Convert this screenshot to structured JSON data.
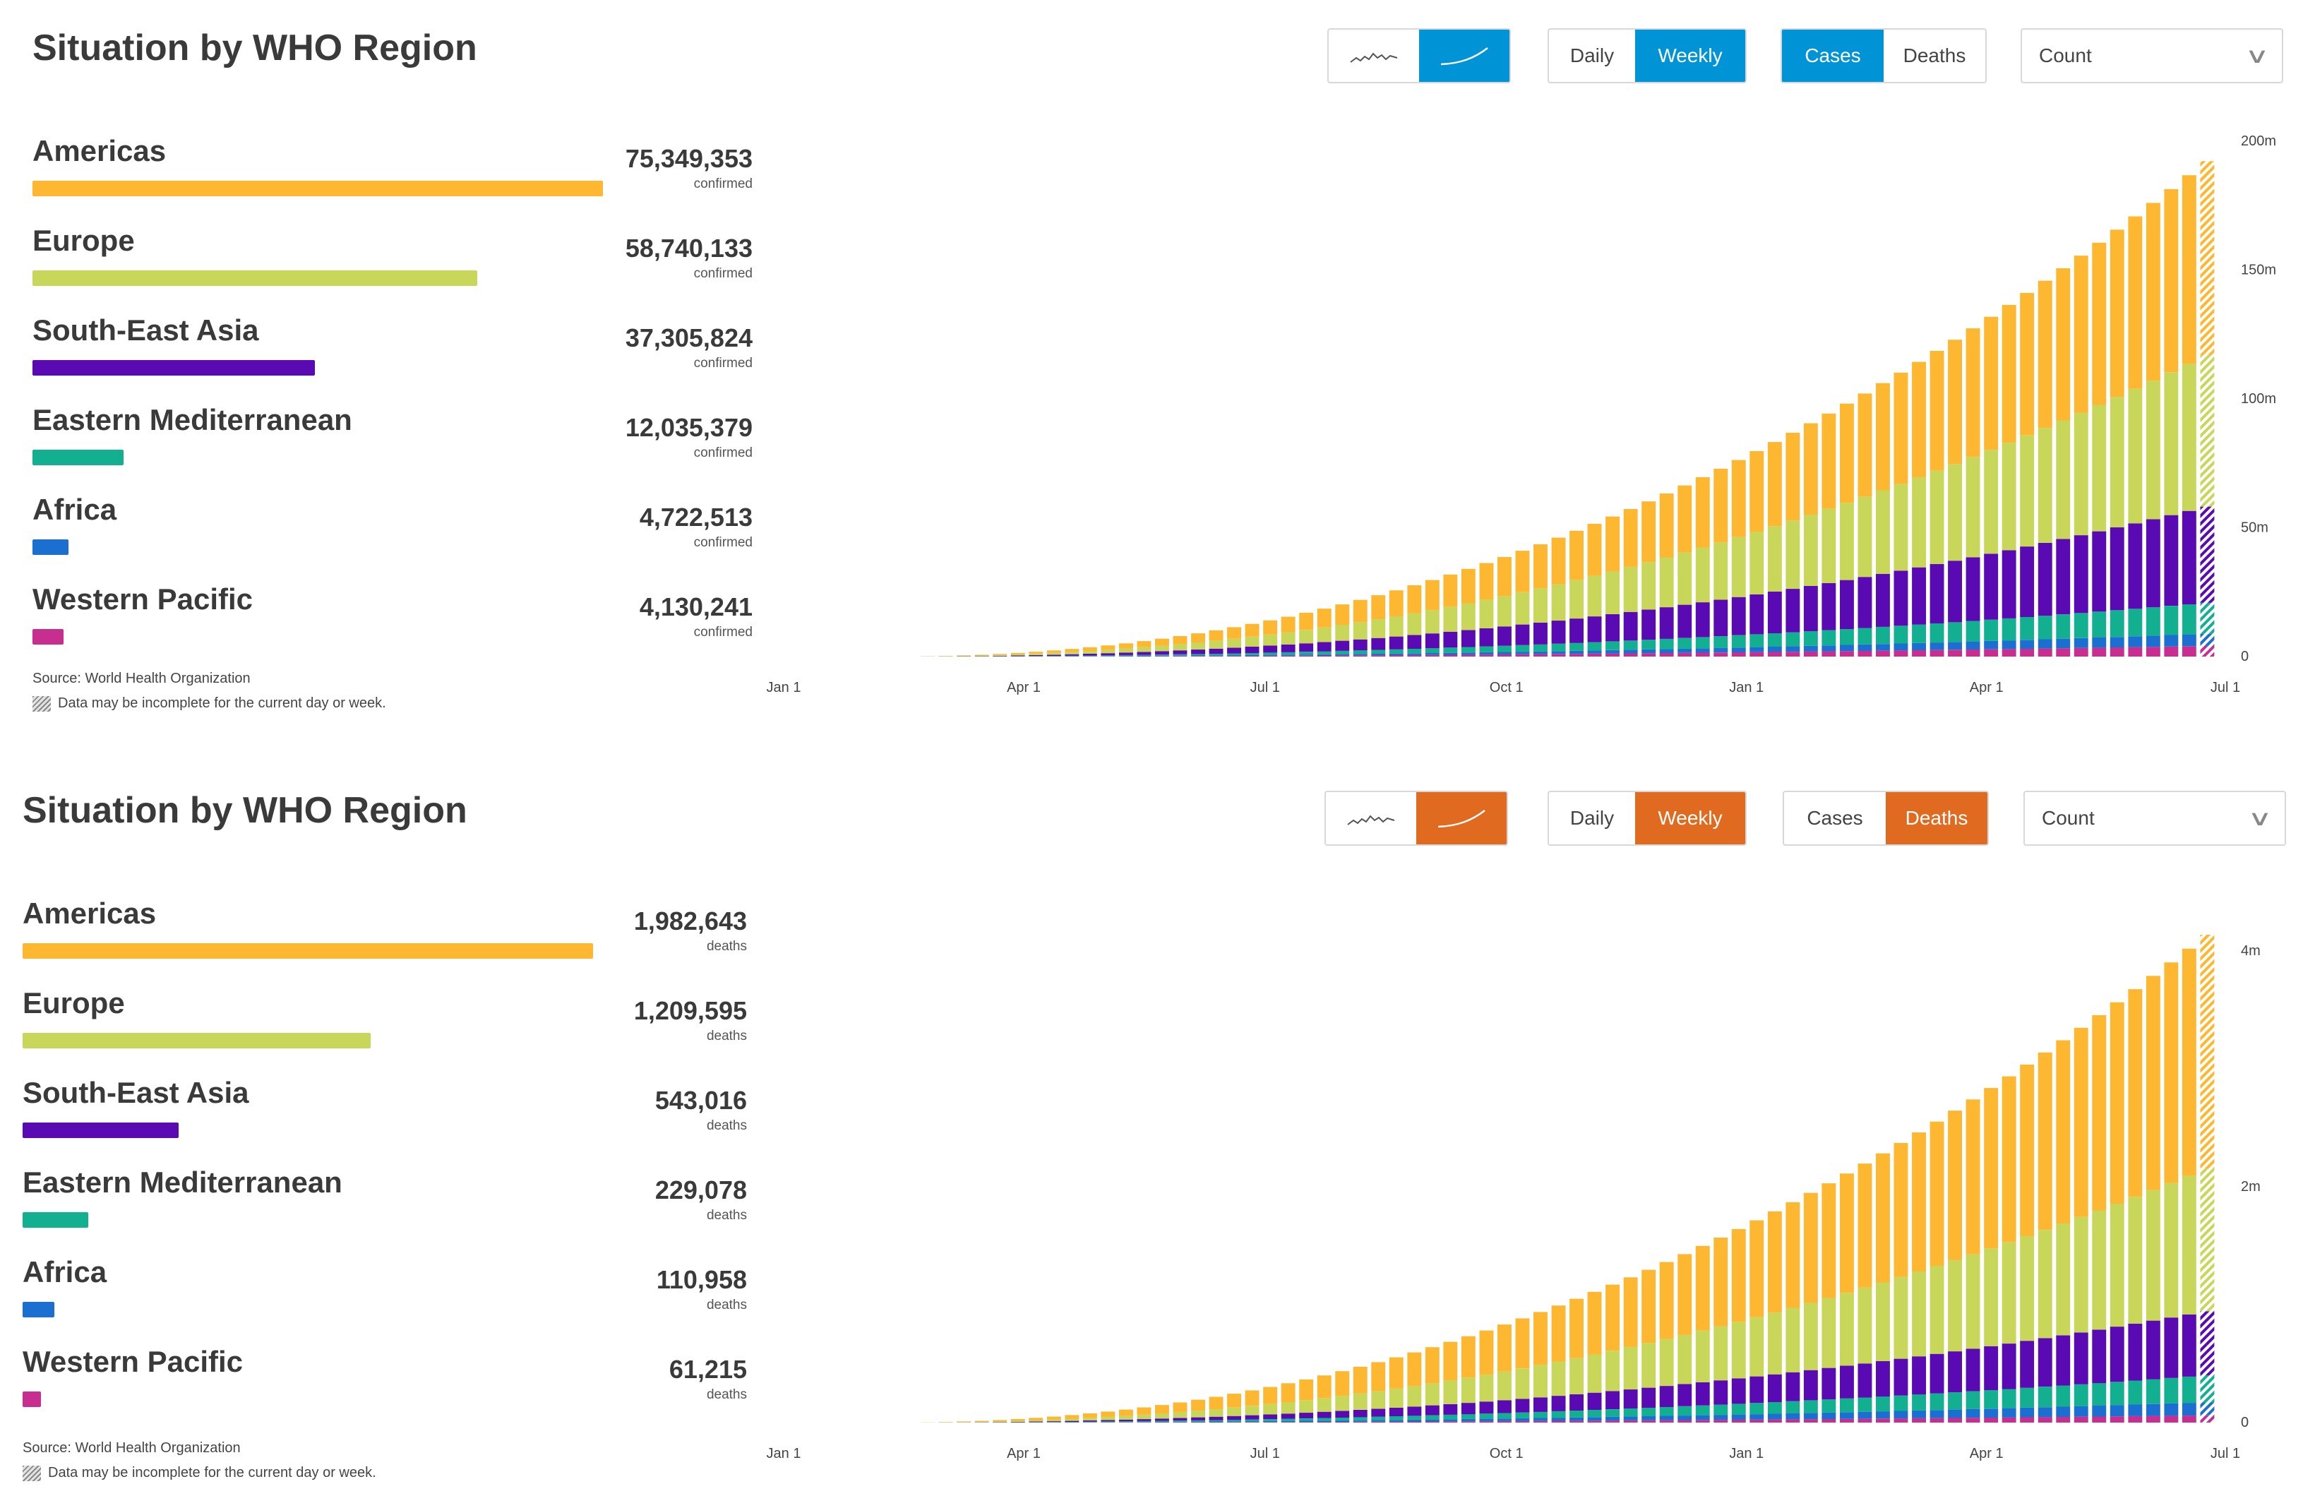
{
  "colors": {
    "Americas": "#FDB730",
    "Europe": "#C8D75A",
    "South-East Asia": "#5A0AB3",
    "Eastern Mediterranean": "#12B091",
    "Africa": "#1A6FD0",
    "Western Pacific": "#C72E8F"
  },
  "panels": [
    {
      "title": "Situation by WHO Region",
      "accent": "#0093D5",
      "controls": {
        "chart_style": [
          "wave-icon",
          "curve-icon"
        ],
        "active_style": 1,
        "period": [
          "Daily",
          "Weekly"
        ],
        "active_period": 1,
        "metric": [
          "Cases",
          "Deaths"
        ],
        "active_metric": 0,
        "scale": "Count"
      },
      "regions": [
        {
          "name": "Americas",
          "value": "75,349,353",
          "label": "confirmed",
          "number": 75349353
        },
        {
          "name": "Europe",
          "value": "58,740,133",
          "label": "confirmed",
          "number": 58740133
        },
        {
          "name": "South-East Asia",
          "value": "37,305,824",
          "label": "confirmed",
          "number": 37305824
        },
        {
          "name": "Eastern Mediterranean",
          "value": "12,035,379",
          "label": "confirmed",
          "number": 12035379
        },
        {
          "name": "Africa",
          "value": "4,722,513",
          "label": "confirmed",
          "number": 4722513
        },
        {
          "name": "Western Pacific",
          "value": "4,130,241",
          "label": "confirmed",
          "number": 4130241
        }
      ],
      "source": "Source: World Health Organization",
      "note": "Data may be incomplete for the current day or week.",
      "chart_data": {
        "type": "bar",
        "stacked": true,
        "cumulative": true,
        "x_ticks": [
          "Jan 1",
          "Apr 1",
          "Jul 1",
          "Oct 1",
          "Jan 1",
          "Apr 1",
          "Jul 1"
        ],
        "y_ticks": [
          "0",
          "50m",
          "100m",
          "150m",
          "200m"
        ],
        "ylim": [
          0,
          200000000
        ],
        "y_axis_position": "right",
        "series_order": [
          "Western Pacific",
          "Africa",
          "Eastern Mediterranean",
          "South-East Asia",
          "Europe",
          "Americas"
        ],
        "final_totals": [
          4130241,
          4722513,
          12035379,
          37305824,
          58740133,
          75349353
        ],
        "last_bar_incomplete": true
      }
    },
    {
      "title": "Situation by WHO Region",
      "accent": "#E06A1F",
      "controls": {
        "chart_style": [
          "wave-icon",
          "curve-icon"
        ],
        "active_style": 1,
        "period": [
          "Daily",
          "Weekly"
        ],
        "active_period": 1,
        "metric": [
          "Cases",
          "Deaths"
        ],
        "active_metric": 1,
        "scale": "Count"
      },
      "regions": [
        {
          "name": "Americas",
          "value": "1,982,643",
          "label": "deaths",
          "number": 1982643
        },
        {
          "name": "Europe",
          "value": "1,209,595",
          "label": "deaths",
          "number": 1209595
        },
        {
          "name": "South-East Asia",
          "value": "543,016",
          "label": "deaths",
          "number": 543016
        },
        {
          "name": "Eastern Mediterranean",
          "value": "229,078",
          "label": "deaths",
          "number": 229078
        },
        {
          "name": "Africa",
          "value": "110,958",
          "label": "deaths",
          "number": 110958
        },
        {
          "name": "Western Pacific",
          "value": "61,215",
          "label": "deaths",
          "number": 61215
        }
      ],
      "source": "Source: World Health Organization",
      "note": "Data may be incomplete for the current day or week.",
      "chart_data": {
        "type": "bar",
        "stacked": true,
        "cumulative": true,
        "x_ticks": [
          "Jan 1",
          "Apr 1",
          "Jul 1",
          "Oct 1",
          "Jan 1",
          "Apr 1",
          "Jul 1"
        ],
        "y_ticks": [
          "0",
          "2m",
          "4m"
        ],
        "ylim": [
          0,
          4400000
        ],
        "y_axis_position": "right",
        "series_order": [
          "Western Pacific",
          "Africa",
          "Eastern Mediterranean",
          "South-East Asia",
          "Europe",
          "Americas"
        ],
        "final_totals": [
          61215,
          110958,
          229078,
          543016,
          1209595,
          1982643
        ],
        "last_bar_incomplete": true
      }
    }
  ]
}
